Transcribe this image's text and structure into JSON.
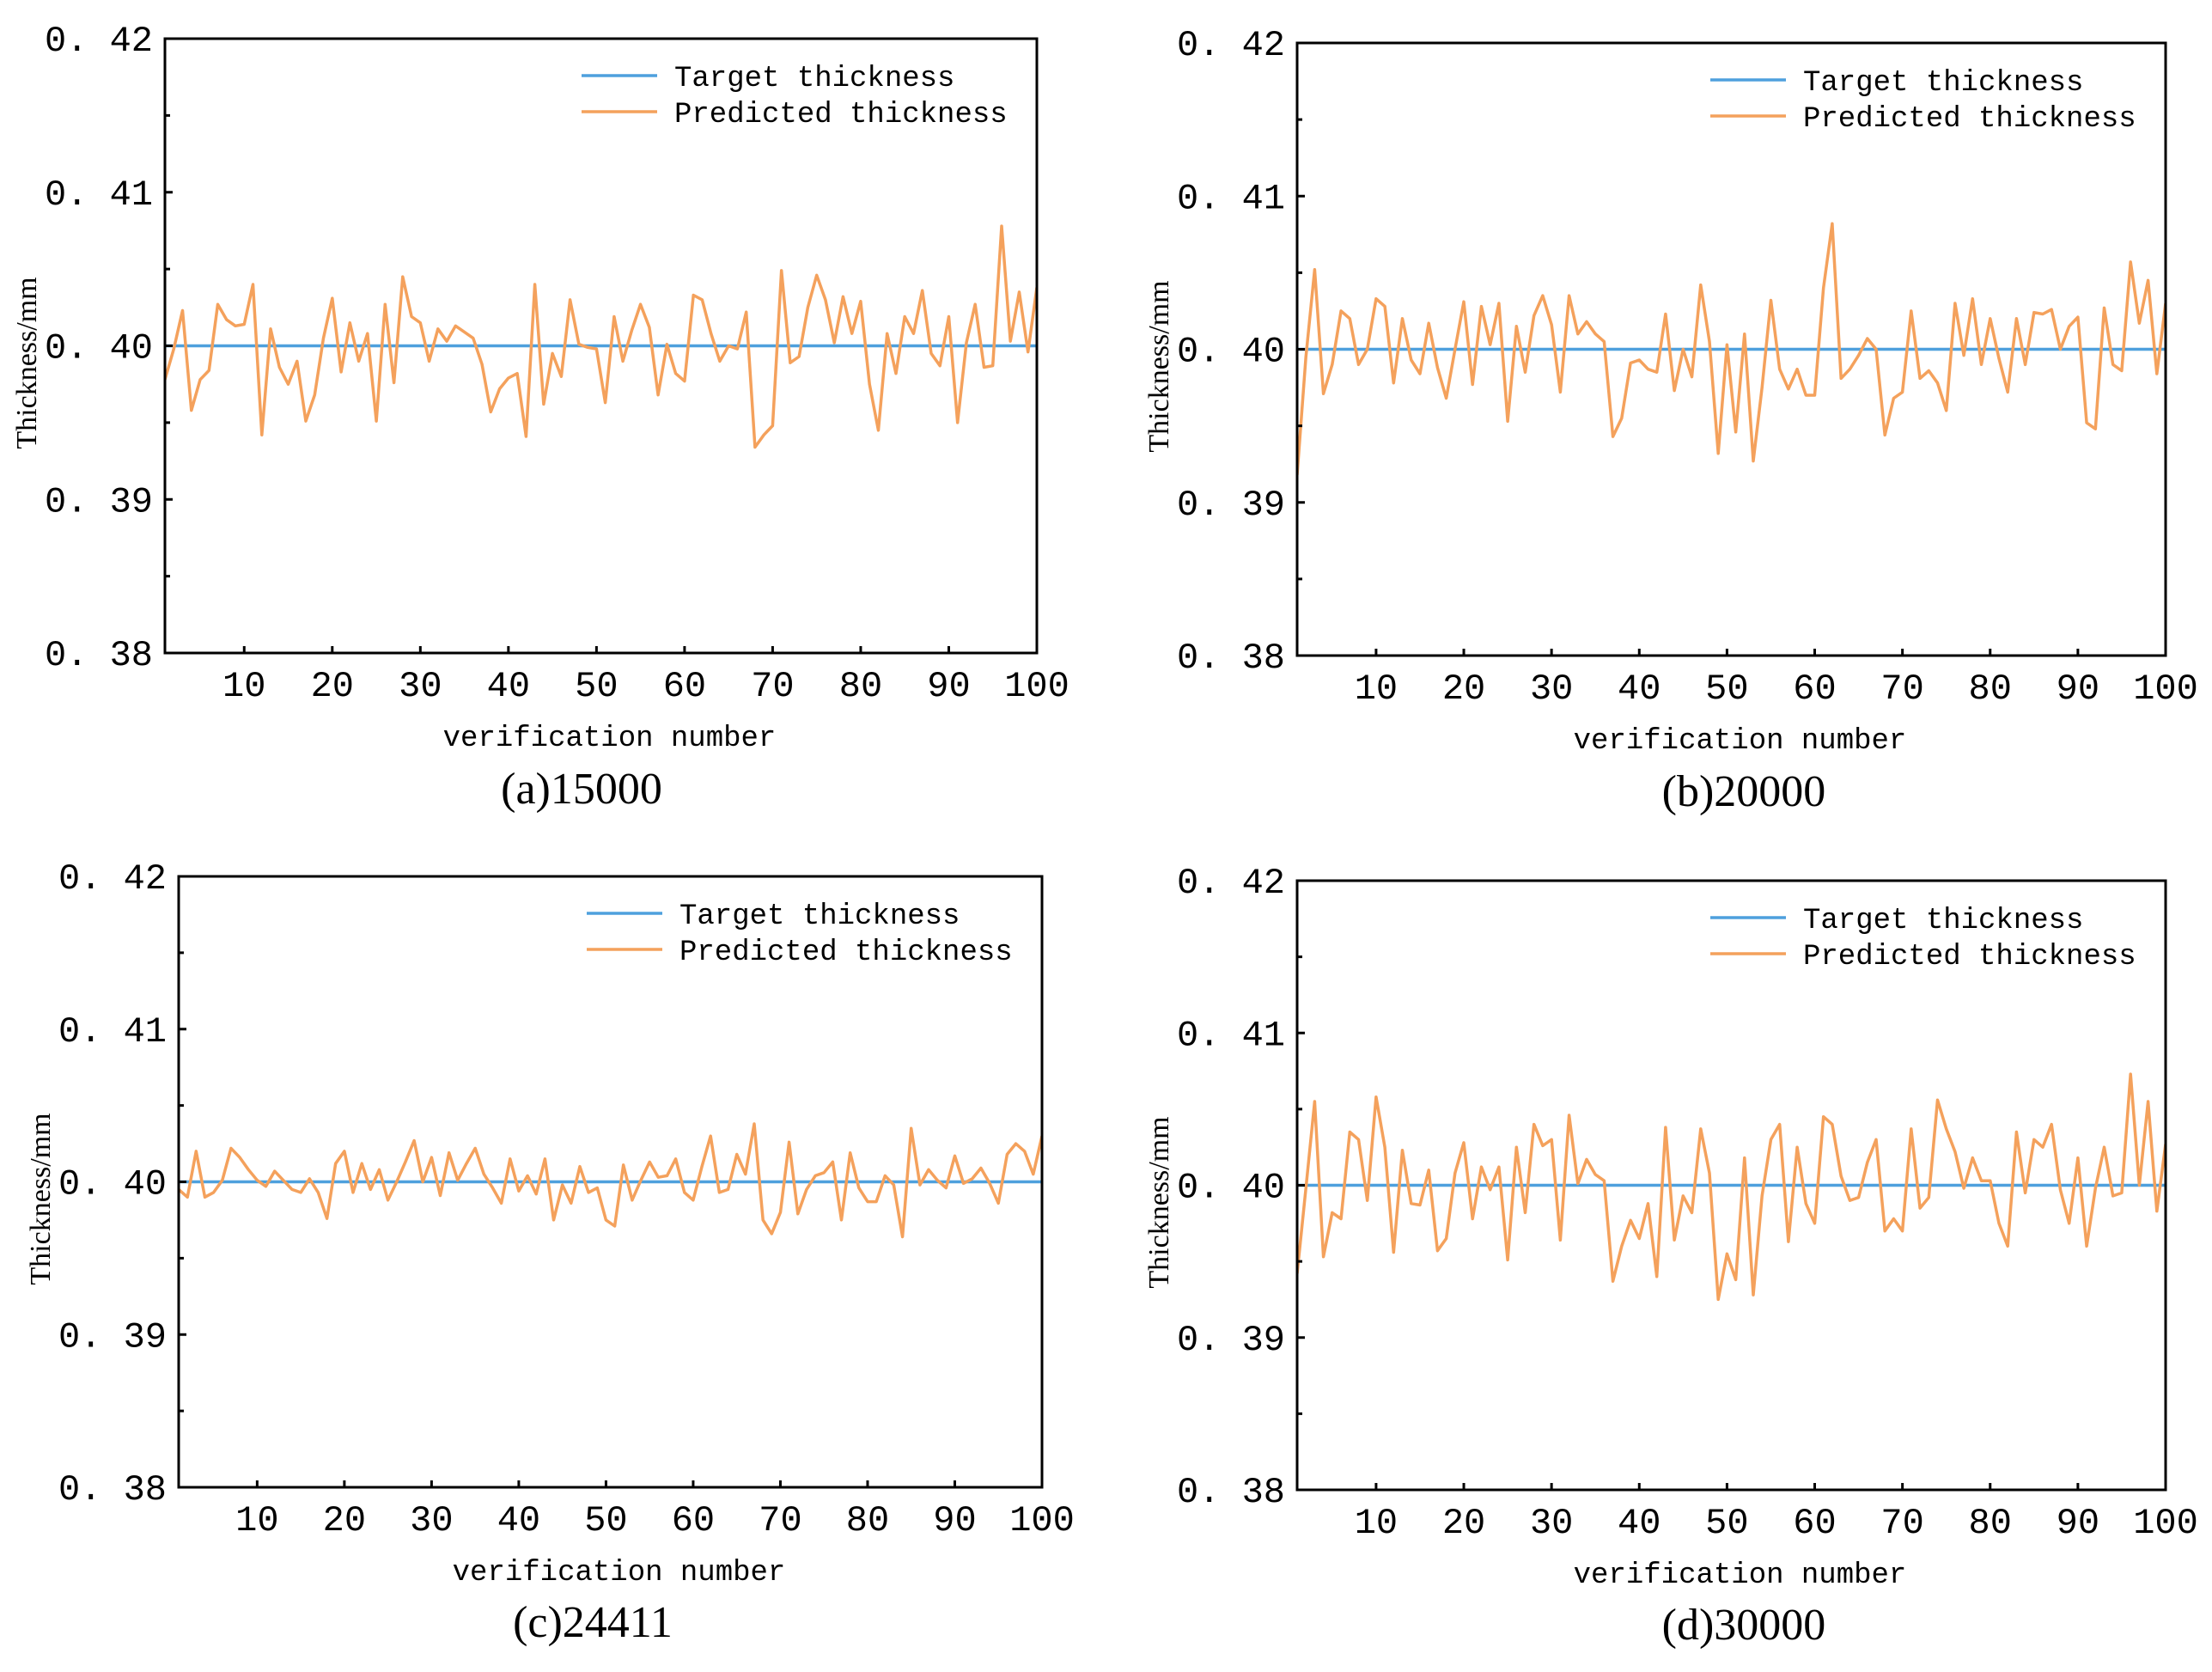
{
  "figure": {
    "colors": {
      "target": "#4ea0dd",
      "predicted": "#f4a15c",
      "axis": "#000000"
    },
    "legend_entries": [
      "Target thickness",
      "Predicted thickness"
    ]
  },
  "chart_data": [
    {
      "type": "line",
      "caption": "(a)15000",
      "xlabel": "verification number",
      "ylabel": "Thickness/mm",
      "xlim": [
        1,
        100
      ],
      "ylim": [
        0.38,
        0.42
      ],
      "xticks": [
        10,
        20,
        30,
        40,
        50,
        60,
        70,
        80,
        90,
        100
      ],
      "yticks": [
        "0.38",
        "0.39",
        "0.40",
        "0.41",
        "0.42"
      ],
      "ytick_labels": [
        "0. 38",
        "0. 39",
        "0. 40",
        "0. 41",
        "0. 42"
      ],
      "legend": [
        "Target thickness",
        "Predicted thickness"
      ],
      "legend_position": "top-right",
      "series": [
        {
          "name": "Target thickness",
          "values": [
            0.4,
            0.4
          ],
          "x": [
            1,
            100
          ]
        },
        {
          "name": "Predicted thickness",
          "values": [
            0.3978,
            0.3998,
            0.4023,
            0.3958,
            0.3978,
            0.3984,
            0.4027,
            0.4017,
            0.4013,
            0.4014,
            0.404,
            0.3942,
            0.4011,
            0.3986,
            0.3975,
            0.399,
            0.3951,
            0.3968,
            0.4005,
            0.4031,
            0.3983,
            0.4015,
            0.399,
            0.4008,
            0.3951,
            0.4027,
            0.3976,
            0.4045,
            0.4019,
            0.4015,
            0.399,
            0.4011,
            0.4003,
            0.4013,
            0.4009,
            0.4005,
            0.3988,
            0.3957,
            0.3972,
            0.3979,
            0.3982,
            0.3941,
            0.404,
            0.3962,
            0.3995,
            0.398,
            0.403,
            0.4001,
            0.3999,
            0.3998,
            0.3963,
            0.4019,
            0.399,
            0.401,
            0.4027,
            0.4012,
            0.3968,
            0.4001,
            0.3982,
            0.3977,
            0.4033,
            0.403,
            0.4008,
            0.399,
            0.4,
            0.3998,
            0.4022,
            0.3934,
            0.3942,
            0.3948,
            0.4049,
            0.3989,
            0.3993,
            0.4025,
            0.4046,
            0.403,
            0.4002,
            0.4032,
            0.4008,
            0.4029,
            0.3975,
            0.3945,
            0.4008,
            0.3982,
            0.4019,
            0.4008,
            0.4036,
            0.3995,
            0.3987,
            0.4019,
            0.395,
            0.4002,
            0.4027,
            0.3986,
            0.3987,
            0.4078,
            0.4003,
            0.4035,
            0.3996,
            0.4038
          ]
        }
      ]
    },
    {
      "type": "line",
      "caption": "(b)20000",
      "xlabel": "verification number",
      "ylabel": "Thickness/mm",
      "xlim": [
        1,
        100
      ],
      "ylim": [
        0.38,
        0.42
      ],
      "xticks": [
        10,
        20,
        30,
        40,
        50,
        60,
        70,
        80,
        90,
        100
      ],
      "yticks": [
        "0.38",
        "0.39",
        "0.40",
        "0.41",
        "0.42"
      ],
      "ytick_labels": [
        "0. 38",
        "0. 39",
        "0. 40",
        "0. 41",
        "0. 42"
      ],
      "legend": [
        "Target thickness",
        "Predicted thickness"
      ],
      "legend_position": "top-right",
      "series": [
        {
          "name": "Target thickness",
          "values": [
            0.4,
            0.4
          ],
          "x": [
            1,
            100
          ]
        },
        {
          "name": "Predicted thickness",
          "values": [
            0.3918,
            0.3995,
            0.4052,
            0.3971,
            0.399,
            0.4025,
            0.402,
            0.399,
            0.4,
            0.4033,
            0.4028,
            0.3978,
            0.402,
            0.3993,
            0.3984,
            0.4017,
            0.3988,
            0.3968,
            0.4,
            0.4031,
            0.3977,
            0.4028,
            0.4003,
            0.403,
            0.3953,
            0.4015,
            0.3985,
            0.4022,
            0.4035,
            0.4016,
            0.3972,
            0.4035,
            0.401,
            0.4018,
            0.401,
            0.4005,
            0.3943,
            0.3955,
            0.3991,
            0.3993,
            0.3987,
            0.3985,
            0.4023,
            0.3973,
            0.4,
            0.3982,
            0.4042,
            0.4005,
            0.3932,
            0.4003,
            0.3946,
            0.401,
            0.3927,
            0.3975,
            0.4032,
            0.3987,
            0.3974,
            0.3987,
            0.397,
            0.397,
            0.404,
            0.4082,
            0.3981,
            0.3987,
            0.3996,
            0.4007,
            0.4,
            0.3944,
            0.3968,
            0.3972,
            0.4025,
            0.3981,
            0.3986,
            0.3978,
            0.396,
            0.403,
            0.3996,
            0.4033,
            0.399,
            0.402,
            0.3994,
            0.3972,
            0.402,
            0.399,
            0.4024,
            0.4023,
            0.4026,
            0.4,
            0.4015,
            0.4021,
            0.3952,
            0.3948,
            0.4027,
            0.399,
            0.3986,
            0.4057,
            0.4017,
            0.4045,
            0.3984,
            0.403
          ]
        }
      ]
    },
    {
      "type": "line",
      "caption": "(c)24411",
      "xlabel": "verification number",
      "ylabel": "Thickness/mm",
      "xlim": [
        1,
        100
      ],
      "ylim": [
        0.38,
        0.42
      ],
      "xticks": [
        10,
        20,
        30,
        40,
        50,
        60,
        70,
        80,
        90,
        100
      ],
      "yticks": [
        "0.38",
        "0.39",
        "0.40",
        "0.41",
        "0.42"
      ],
      "ytick_labels": [
        "0. 38",
        "0. 39",
        "0. 40",
        "0. 41",
        "0. 42"
      ],
      "legend": [
        "Target thickness",
        "Predicted thickness"
      ],
      "legend_position": "top-right",
      "series": [
        {
          "name": "Target thickness",
          "values": [
            0.4,
            0.4
          ],
          "x": [
            1,
            100
          ]
        },
        {
          "name": "Predicted thickness",
          "values": [
            0.3995,
            0.399,
            0.402,
            0.399,
            0.3993,
            0.4001,
            0.4022,
            0.4016,
            0.4008,
            0.4001,
            0.3997,
            0.4007,
            0.4001,
            0.3995,
            0.3993,
            0.4002,
            0.3993,
            0.3976,
            0.4012,
            0.402,
            0.3993,
            0.4012,
            0.3995,
            0.4008,
            0.3988,
            0.4,
            0.4013,
            0.4027,
            0.4,
            0.4016,
            0.3991,
            0.4019,
            0.4001,
            0.4012,
            0.4022,
            0.4005,
            0.3996,
            0.3986,
            0.4015,
            0.3994,
            0.4004,
            0.3992,
            0.4015,
            0.3975,
            0.3998,
            0.3986,
            0.401,
            0.3993,
            0.3996,
            0.3975,
            0.3971,
            0.4011,
            0.3988,
            0.4001,
            0.4013,
            0.4003,
            0.4004,
            0.4015,
            0.3993,
            0.3988,
            0.401,
            0.403,
            0.3993,
            0.3995,
            0.4018,
            0.4005,
            0.4038,
            0.3975,
            0.3966,
            0.398,
            0.4026,
            0.3979,
            0.3995,
            0.4004,
            0.4006,
            0.4013,
            0.3975,
            0.4019,
            0.3996,
            0.3987,
            0.3987,
            0.4004,
            0.3998,
            0.3964,
            0.4035,
            0.3998,
            0.4008,
            0.4001,
            0.3996,
            0.4017,
            0.3999,
            0.4002,
            0.4009,
            0.3999,
            0.3986,
            0.4018,
            0.4025,
            0.402,
            0.4005,
            0.403
          ]
        }
      ]
    },
    {
      "type": "line",
      "caption": "(d)30000",
      "xlabel": "verification number",
      "ylabel": "Thickness/mm",
      "xlim": [
        1,
        100
      ],
      "ylim": [
        0.38,
        0.42
      ],
      "xticks": [
        10,
        20,
        30,
        40,
        50,
        60,
        70,
        80,
        90,
        100
      ],
      "yticks": [
        "0.38",
        "0.39",
        "0.40",
        "0.41",
        "0.42"
      ],
      "ytick_labels": [
        "0. 38",
        "0. 39",
        "0. 40",
        "0. 41",
        "0. 42"
      ],
      "legend": [
        "Target thickness",
        "Predicted thickness"
      ],
      "legend_position": "top-right",
      "series": [
        {
          "name": "Target thickness",
          "values": [
            0.4,
            0.4
          ],
          "x": [
            1,
            100
          ]
        },
        {
          "name": "Predicted thickness",
          "values": [
            0.3942,
            0.3998,
            0.4055,
            0.3953,
            0.3982,
            0.3978,
            0.4035,
            0.403,
            0.399,
            0.4058,
            0.4025,
            0.3956,
            0.4023,
            0.3988,
            0.3987,
            0.401,
            0.3957,
            0.3965,
            0.4008,
            0.4028,
            0.3978,
            0.4012,
            0.3997,
            0.4012,
            0.3951,
            0.4025,
            0.3982,
            0.404,
            0.4026,
            0.403,
            0.3964,
            0.4046,
            0.4001,
            0.4017,
            0.4007,
            0.4003,
            0.3937,
            0.396,
            0.3977,
            0.3965,
            0.3988,
            0.394,
            0.4038,
            0.3964,
            0.3993,
            0.3982,
            0.4037,
            0.4008,
            0.3925,
            0.3955,
            0.3938,
            0.4018,
            0.3928,
            0.3993,
            0.403,
            0.404,
            0.3963,
            0.4025,
            0.3988,
            0.3975,
            0.4045,
            0.404,
            0.4006,
            0.399,
            0.3992,
            0.4015,
            0.403,
            0.397,
            0.3978,
            0.397,
            0.4037,
            0.3985,
            0.3992,
            0.4056,
            0.4037,
            0.4022,
            0.3998,
            0.4018,
            0.4003,
            0.4003,
            0.3975,
            0.396,
            0.4035,
            0.3995,
            0.403,
            0.4025,
            0.404,
            0.3997,
            0.3975,
            0.4018,
            0.396,
            0.3998,
            0.4025,
            0.3993,
            0.3995,
            0.4073,
            0.4,
            0.4055,
            0.3983,
            0.4027
          ]
        }
      ]
    }
  ]
}
